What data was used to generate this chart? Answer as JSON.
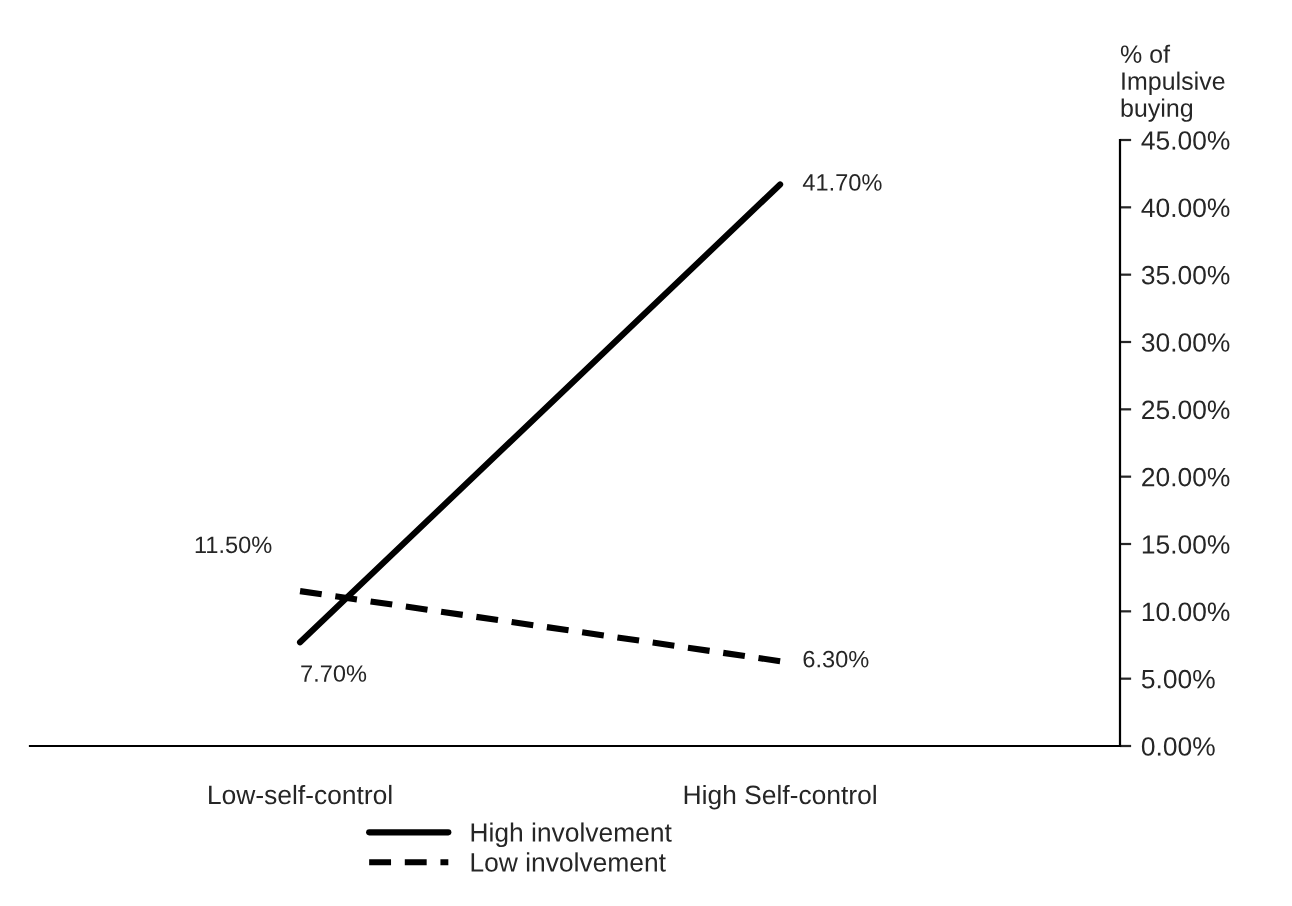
{
  "chart_data": {
    "type": "line",
    "ylabel": "% of\nImpulsive\nbuying",
    "categories": [
      "Low-self-control",
      "High Self-control"
    ],
    "series": [
      {
        "name": "High involvement",
        "color": "#000000",
        "line_style": "solid",
        "values": [
          7.7,
          41.7
        ],
        "value_labels": [
          "7.70%",
          "41.70%"
        ]
      },
      {
        "name": "Low involvement",
        "color": "#000000",
        "line_style": "dashed",
        "values": [
          11.5,
          6.3
        ],
        "value_labels": [
          "11.50%",
          "6.30%"
        ]
      }
    ],
    "ylim": [
      0,
      45
    ],
    "yticks": [
      {
        "value": 0,
        "label": "0.00%"
      },
      {
        "value": 5,
        "label": "5.00%"
      },
      {
        "value": 10,
        "label": "10.00%"
      },
      {
        "value": 15,
        "label": "15.00%"
      },
      {
        "value": 20,
        "label": "20.00%"
      },
      {
        "value": 25,
        "label": "25.00%"
      },
      {
        "value": 30,
        "label": "30.00%"
      },
      {
        "value": 35,
        "label": "35.00%"
      },
      {
        "value": 40,
        "label": "40.00%"
      },
      {
        "value": 45,
        "label": "45.00%"
      }
    ],
    "grid": false,
    "legend": "bottom",
    "marker": "none"
  }
}
